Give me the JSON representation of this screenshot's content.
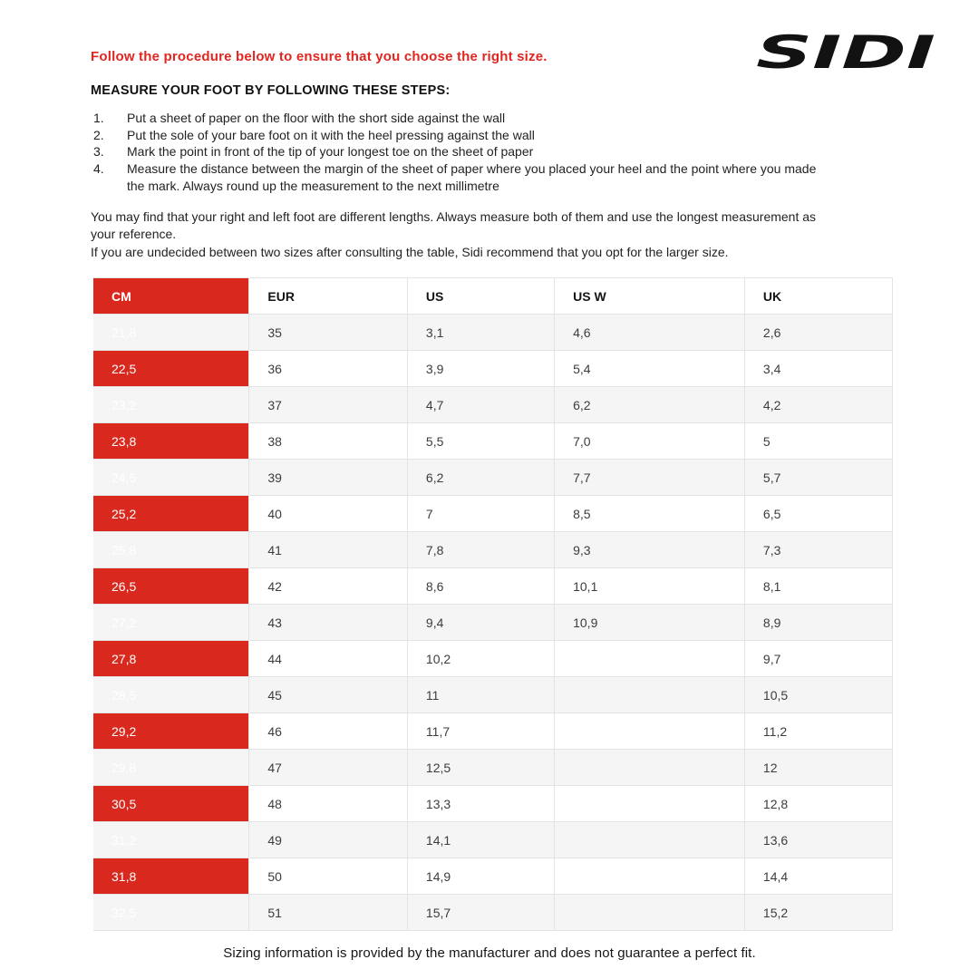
{
  "page": {
    "intro_line": "Follow the procedure below to ensure that you choose the right size.",
    "logo_text": "SIDI",
    "steps_heading": "MEASURE YOUR FOOT BY FOLLOWING THESE STEPS:",
    "step_numbers": [
      "1.",
      "2.",
      "3.",
      "4."
    ],
    "steps": [
      "Put a sheet of paper on the floor with the short side against the wall",
      "Put the sole of your bare foot on it with the heel pressing against the wall",
      "Mark the point in front of the tip of your longest toe on the sheet of paper",
      "Measure the distance between the margin of the sheet of paper where you placed your heel and the point where you made\nthe mark. Always round up the measurement to the next millimetre"
    ],
    "notes": [
      "You may find that your right and left foot are different lengths. Always measure both of them and use the longest measurement as",
      "your reference.",
      "If you are undecided between two sizes after consulting the table, Sidi recommend that you opt for the larger size."
    ],
    "footer": "Sizing information is provided by the manufacturer and does not guarantee a perfect fit."
  },
  "colors": {
    "sidi_red": "#d9291f",
    "row_alt": "#f5f5f5",
    "border": "#e4e4e4",
    "logo_black": "#121212"
  },
  "table": {
    "columns": [
      "CM",
      "EUR",
      "US",
      "US W",
      "UK"
    ],
    "column_widths_pct": [
      19.5,
      19.8,
      18.4,
      23.8,
      18.5
    ],
    "rows": [
      [
        "21,8",
        "35",
        "3,1",
        "4,6",
        "2,6"
      ],
      [
        "22,5",
        "36",
        "3,9",
        "5,4",
        "3,4"
      ],
      [
        "23,2",
        "37",
        "4,7",
        "6,2",
        "4,2"
      ],
      [
        "23,8",
        "38",
        "5,5",
        "7,0",
        "5"
      ],
      [
        "24,5",
        "39",
        "6,2",
        "7,7",
        "5,7"
      ],
      [
        "25,2",
        "40",
        "7",
        "8,5",
        "6,5"
      ],
      [
        "25,8",
        "41",
        "7,8",
        "9,3",
        "7,3"
      ],
      [
        "26,5",
        "42",
        "8,6",
        "10,1",
        "8,1"
      ],
      [
        "27,2",
        "43",
        "9,4",
        "10,9",
        "8,9"
      ],
      [
        "27,8",
        "44",
        "10,2",
        "",
        "9,7"
      ],
      [
        "28,5",
        "45",
        "11",
        "",
        "10,5"
      ],
      [
        "29,2",
        "46",
        "11,7",
        "",
        "11,2"
      ],
      [
        "29,8",
        "47",
        "12,5",
        "",
        "12"
      ],
      [
        "30,5",
        "48",
        "13,3",
        "",
        "12,8"
      ],
      [
        "31,2",
        "49",
        "14,1",
        "",
        "13,6"
      ],
      [
        "31,8",
        "50",
        "14,9",
        "",
        "14,4"
      ],
      [
        "32,5",
        "51",
        "15,7",
        "",
        "15,2"
      ]
    ]
  }
}
